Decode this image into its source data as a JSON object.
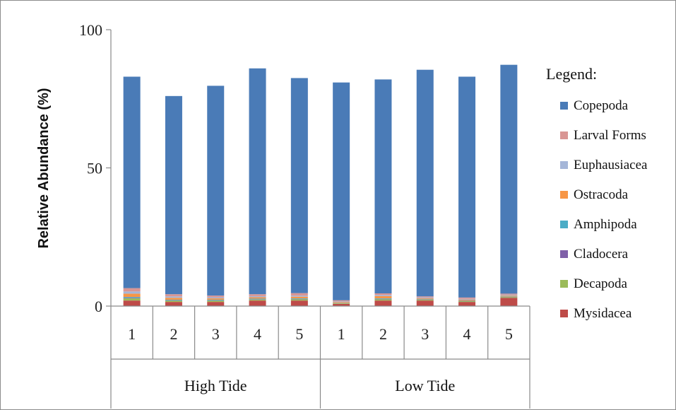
{
  "chart_data": {
    "type": "bar",
    "stacked": true,
    "title": "",
    "xlabel": "",
    "ylabel": "Relative Abundance (%)",
    "ylim": [
      0,
      100
    ],
    "yticks": [
      0,
      50,
      100
    ],
    "grid": false,
    "legend_title": "Legend:",
    "legend_position": "right",
    "groups": [
      {
        "label": "High Tide",
        "categories": [
          "1",
          "2",
          "3",
          "4",
          "5"
        ]
      },
      {
        "label": "Low Tide",
        "categories": [
          "1",
          "2",
          "3",
          "4",
          "5"
        ]
      }
    ],
    "categories": [
      "1",
      "2",
      "3",
      "4",
      "5",
      "1",
      "2",
      "3",
      "4",
      "5"
    ],
    "series": [
      {
        "name": "Mysidacea",
        "color": "#be4b48",
        "values": [
          2.0,
          1.5,
          1.5,
          2.0,
          2.0,
          0.8,
          2.0,
          2.0,
          1.5,
          3.0
        ]
      },
      {
        "name": "Decapoda",
        "color": "#9bbb59",
        "values": [
          0.8,
          0.5,
          0.5,
          0.4,
          0.5,
          0.2,
          0.5,
          0.3,
          0.3,
          0.3
        ]
      },
      {
        "name": "Cladocera",
        "color": "#7f60a8",
        "values": [
          0.2,
          0.1,
          0.1,
          0.1,
          0.1,
          0.0,
          0.1,
          0.1,
          0.1,
          0.1
        ]
      },
      {
        "name": "Amphipoda",
        "color": "#4bacc6",
        "values": [
          0.3,
          0.2,
          0.2,
          0.2,
          0.2,
          0.1,
          0.2,
          0.1,
          0.1,
          0.1
        ]
      },
      {
        "name": "Ostracoda",
        "color": "#f79646",
        "values": [
          1.2,
          0.7,
          0.5,
          0.5,
          0.6,
          0.3,
          0.8,
          0.3,
          0.3,
          0.3
        ]
      },
      {
        "name": "Euphausiacea",
        "color": "#a5b6d8",
        "values": [
          0.8,
          0.5,
          0.4,
          0.4,
          0.4,
          0.3,
          0.4,
          0.3,
          0.3,
          0.3
        ]
      },
      {
        "name": "Larval Forms",
        "color": "#d99694",
        "values": [
          1.2,
          0.8,
          0.6,
          0.7,
          0.9,
          0.4,
          0.6,
          0.4,
          0.5,
          0.4
        ]
      },
      {
        "name": "Copepoda",
        "color": "#4a7bb7",
        "values": [
          76.5,
          71.7,
          75.9,
          81.7,
          77.8,
          78.8,
          77.4,
          82.0,
          79.9,
          82.8
        ]
      }
    ],
    "legend_order": [
      "Copepoda",
      "Larval Forms",
      "Euphausiacea",
      "Ostracoda",
      "Amphipoda",
      "Cladocera",
      "Decapoda",
      "Mysidacea"
    ]
  }
}
